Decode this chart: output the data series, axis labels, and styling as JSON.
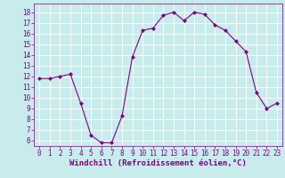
{
  "x": [
    0,
    1,
    2,
    3,
    4,
    5,
    6,
    7,
    8,
    9,
    10,
    11,
    12,
    13,
    14,
    15,
    16,
    17,
    18,
    19,
    20,
    21,
    22,
    23
  ],
  "y": [
    11.8,
    11.8,
    12.0,
    12.2,
    9.5,
    6.5,
    5.8,
    5.8,
    8.3,
    13.8,
    16.3,
    16.5,
    17.7,
    18.0,
    17.2,
    18.0,
    17.8,
    16.8,
    16.3,
    15.3,
    14.3,
    10.5,
    9.0,
    9.5
  ],
  "line_color": "#800080",
  "marker": "D",
  "marker_size": 2,
  "bg_color": "#c8ecec",
  "grid_color": "#ffffff",
  "xlabel": "Windchill (Refroidissement éolien,°C)",
  "xlabel_fontsize": 6.5,
  "tick_fontsize": 5.5,
  "ylim": [
    5.5,
    18.8
  ],
  "xlim": [
    -0.5,
    23.5
  ],
  "yticks": [
    6,
    7,
    8,
    9,
    10,
    11,
    12,
    13,
    14,
    15,
    16,
    17,
    18
  ],
  "xticks": [
    0,
    1,
    2,
    3,
    4,
    5,
    6,
    7,
    8,
    9,
    10,
    11,
    12,
    13,
    14,
    15,
    16,
    17,
    18,
    19,
    20,
    21,
    22,
    23
  ]
}
